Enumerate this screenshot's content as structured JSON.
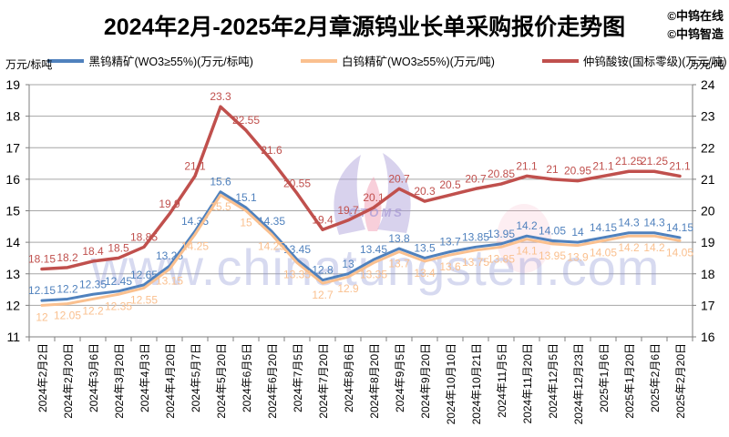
{
  "title": "2024年2月-2025年2月章源钨业长单采购报价走势图",
  "credits": [
    "©中钨在线",
    "©中钨智造"
  ],
  "watermark": {
    "text": "www.chinatungsten.com",
    "logo_text": "CTOMS",
    "text_color": "#8f96d6",
    "logo_purple": "#a99bd6",
    "logo_pink": "#f2a0b5"
  },
  "left_axis": {
    "caption": "万元/标吨",
    "ticks": [
      19,
      18,
      17,
      16,
      15,
      14,
      13,
      12,
      11
    ]
  },
  "right_axis": {
    "caption": "万元/吨",
    "ticks": [
      24,
      23,
      22,
      21,
      20,
      19,
      18,
      17,
      16
    ]
  },
  "chart_data": {
    "type": "line",
    "title": "2024年2月-2025年2月章源钨业长单采购报价走势图",
    "xlabel": "",
    "ylabel_left": "万元/标吨",
    "ylabel_right": "万元/吨",
    "ylim_left": [
      11,
      19
    ],
    "ylim_right": [
      16,
      24
    ],
    "grid": true,
    "legend_position": "top",
    "categories": [
      "2024年2月2日",
      "2024年2月20日",
      "2024年3月6日",
      "2024年3月20日",
      "2024年4月3日",
      "2024年4月20日",
      "2024年5月7日",
      "2024年5月20日",
      "2024年6月5日",
      "2024年6月20日",
      "2024年7月5日",
      "2024年7月20日",
      "2024年8月6日",
      "2024年8月20日",
      "2024年9月5日",
      "2024年9月20日",
      "2024年10月10日",
      "2024年10月21日",
      "2024年11月5日",
      "2024年11月20日",
      "2024年12月5日",
      "2024年12月23日",
      "2025年1月6日",
      "2025年1月20日",
      "2025年2月6日",
      "2025年2月20日"
    ],
    "series": [
      {
        "name": "黑钨精矿(WO3≥55%)(万元/标吨)",
        "axis": "left",
        "color": "#4F81BD",
        "label_position": "above",
        "values": [
          12.15,
          12.2,
          12.35,
          12.45,
          12.65,
          13.25,
          14.35,
          15.6,
          15.1,
          14.35,
          13.45,
          12.8,
          13,
          13.45,
          13.8,
          13.5,
          13.7,
          13.85,
          13.95,
          14.2,
          14.05,
          14,
          14.15,
          14.3,
          14.3,
          14.15
        ]
      },
      {
        "name": "白钨精矿(WO3≥55%)(万元/吨)",
        "axis": "left",
        "color": "#FAC08F",
        "label_position": "below",
        "values": [
          12,
          12.05,
          12.2,
          12.35,
          12.55,
          13.15,
          14.25,
          15.5,
          15,
          14.25,
          13.35,
          12.7,
          12.9,
          13.35,
          13.7,
          13.4,
          13.6,
          13.75,
          13.85,
          14.1,
          13.95,
          13.9,
          14.05,
          14.2,
          14.2,
          14.05
        ]
      },
      {
        "name": "仲钨酸铵(国标零级)(万元/吨)",
        "axis": "right",
        "color": "#C0504D",
        "label_position": "above",
        "values": [
          18.15,
          18.2,
          18.4,
          18.5,
          18.85,
          19.9,
          21.1,
          23.3,
          22.55,
          21.6,
          20.55,
          19.4,
          19.7,
          20.1,
          20.7,
          20.3,
          20.5,
          20.7,
          20.85,
          21.1,
          21,
          20.95,
          21.1,
          21.25,
          21.25,
          21.1
        ]
      }
    ]
  }
}
